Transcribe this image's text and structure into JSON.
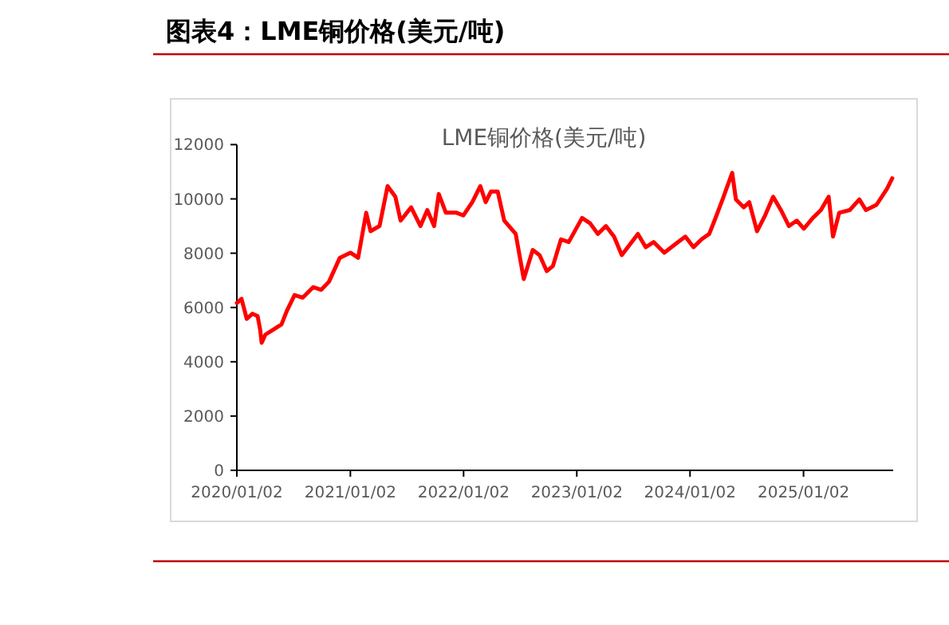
{
  "chart_data": {
    "type": "line",
    "title": "图表4：LME铜价格(美元/吨)",
    "subtitle": "LME铜价格(美元/吨)",
    "xlim": [
      "2020-01-02",
      "2025-10-18"
    ],
    "xticks": [
      {
        "value": "2020-01-02",
        "label": "2020/01/02"
      },
      {
        "value": "2021-01-02",
        "label": "2021/01/02"
      },
      {
        "value": "2022-01-02",
        "label": "2022/01/02"
      },
      {
        "value": "2023-01-02",
        "label": "2023/01/02"
      },
      {
        "value": "2024-01-02",
        "label": "2024/01/02"
      },
      {
        "value": "2025-01-02",
        "label": "2025/01/02"
      }
    ],
    "ylim": [
      0,
      12000
    ],
    "yticks": [
      0,
      2000,
      4000,
      6000,
      8000,
      10000,
      12000
    ],
    "grid": false,
    "marker": "none",
    "line_style": "solid",
    "series": [
      {
        "color": "#ff0000",
        "x": [
          "2020-01-02",
          "2020-01-17",
          "2020-02-03",
          "2020-02-21",
          "2020-03-09",
          "2020-03-17",
          "2020-03-22",
          "2020-04-03",
          "2020-04-29",
          "2020-05-25",
          "2020-06-11",
          "2020-07-06",
          "2020-08-01",
          "2020-09-04",
          "2020-09-30",
          "2020-10-25",
          "2020-11-29",
          "2021-01-02",
          "2021-01-27",
          "2021-02-22",
          "2021-03-08",
          "2021-04-06",
          "2021-05-02",
          "2021-05-27",
          "2021-06-13",
          "2021-07-17",
          "2021-08-16",
          "2021-09-07",
          "2021-09-29",
          "2021-10-14",
          "2021-11-06",
          "2021-12-10",
          "2022-01-01",
          "2022-01-30",
          "2022-02-25",
          "2022-03-14",
          "2022-03-31",
          "2022-04-22",
          "2022-05-13",
          "2022-06-19",
          "2022-07-15",
          "2022-08-13",
          "2022-09-04",
          "2022-09-27",
          "2022-10-17",
          "2022-11-12",
          "2022-12-07",
          "2023-01-19",
          "2023-02-14",
          "2023-03-11",
          "2023-04-06",
          "2023-05-02",
          "2023-05-27",
          "2023-06-22",
          "2023-07-18",
          "2023-08-12",
          "2023-09-07",
          "2023-10-11",
          "2023-11-14",
          "2023-12-18",
          "2024-01-13",
          "2024-02-08",
          "2024-03-04",
          "2024-03-21",
          "2024-04-16",
          "2024-05-17",
          "2024-05-29",
          "2024-06-23",
          "2024-07-11",
          "2024-08-05",
          "2024-08-31",
          "2024-09-26",
          "2024-10-21",
          "2024-11-16",
          "2024-12-11",
          "2025-01-03",
          "2025-02-01",
          "2025-02-27",
          "2025-03-24",
          "2025-04-07",
          "2025-04-27",
          "2025-05-31",
          "2025-07-01",
          "2025-07-22",
          "2025-08-25",
          "2025-09-28",
          "2025-10-15"
        ],
        "values": [
          6165,
          6320,
          5580,
          5770,
          5680,
          5190,
          4700,
          5000,
          5190,
          5380,
          5870,
          6460,
          6360,
          6750,
          6650,
          6950,
          7830,
          8020,
          7830,
          9490,
          8810,
          9000,
          10470,
          10080,
          9200,
          9690,
          9000,
          9590,
          9000,
          10180,
          9490,
          9490,
          9390,
          9880,
          10470,
          9880,
          10270,
          10270,
          9200,
          8710,
          7050,
          8120,
          7930,
          7340,
          7530,
          8510,
          8410,
          9300,
          9100,
          8710,
          9000,
          8610,
          7930,
          8320,
          8710,
          8220,
          8410,
          8020,
          8320,
          8610,
          8220,
          8510,
          8710,
          9200,
          9980,
          10960,
          9980,
          9690,
          9880,
          8810,
          9390,
          10080,
          9590,
          9000,
          9200,
          8900,
          9300,
          9590,
          10080,
          8610,
          9490,
          9590,
          9980,
          9590,
          9780,
          10370,
          10760
        ]
      }
    ]
  }
}
